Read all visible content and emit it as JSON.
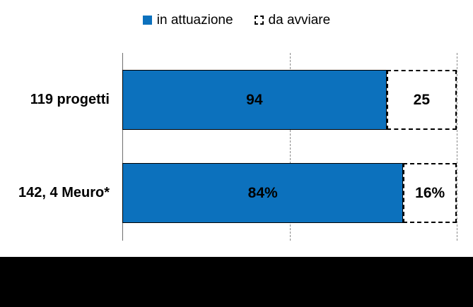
{
  "colors": {
    "bar_blue": "#0C71BD",
    "label_text": "#000000",
    "axis_line": "#6e6e6e",
    "gridline": "#8a8a8a",
    "bottom_band": "#000000",
    "background": "#FFFFFF"
  },
  "legend": {
    "items": [
      {
        "label": "in attuazione",
        "swatch": "solid-blue-square"
      },
      {
        "label": "da avviare",
        "swatch": "dashed-outline-square"
      }
    ]
  },
  "chart_data": {
    "type": "bar",
    "orientation": "horizontal",
    "stacked": true,
    "title": "",
    "xlabel": "",
    "ylabel": "",
    "legend_position": "top",
    "gridlines": "vertical-dashed-at-50%-and-100%",
    "categories": [
      "119 progetti",
      "142, 4 Meuro*"
    ],
    "series": [
      {
        "name": "in attuazione",
        "style": "solid-fill",
        "color": "#0C71BD",
        "values": [
          94,
          84
        ],
        "labels": [
          "94",
          "84%"
        ]
      },
      {
        "name": "da avviare",
        "style": "dashed-outline",
        "color": "#FFFFFF",
        "values": [
          25,
          16
        ],
        "labels": [
          "25",
          "16%"
        ]
      }
    ],
    "rows": [
      {
        "category": "119 progetti",
        "segments": [
          {
            "series": "in attuazione",
            "value": 94,
            "label": "94",
            "fraction": 0.79
          },
          {
            "series": "da avviare",
            "value": 25,
            "label": "25",
            "fraction": 0.21
          }
        ]
      },
      {
        "category": "142, 4 Meuro*",
        "segments": [
          {
            "series": "in attuazione",
            "value": 84,
            "label": "84%",
            "fraction": 0.84
          },
          {
            "series": "da avviare",
            "value": 16,
            "label": "16%",
            "fraction": 0.16
          }
        ]
      }
    ]
  },
  "bottom_band": {
    "text": ""
  }
}
